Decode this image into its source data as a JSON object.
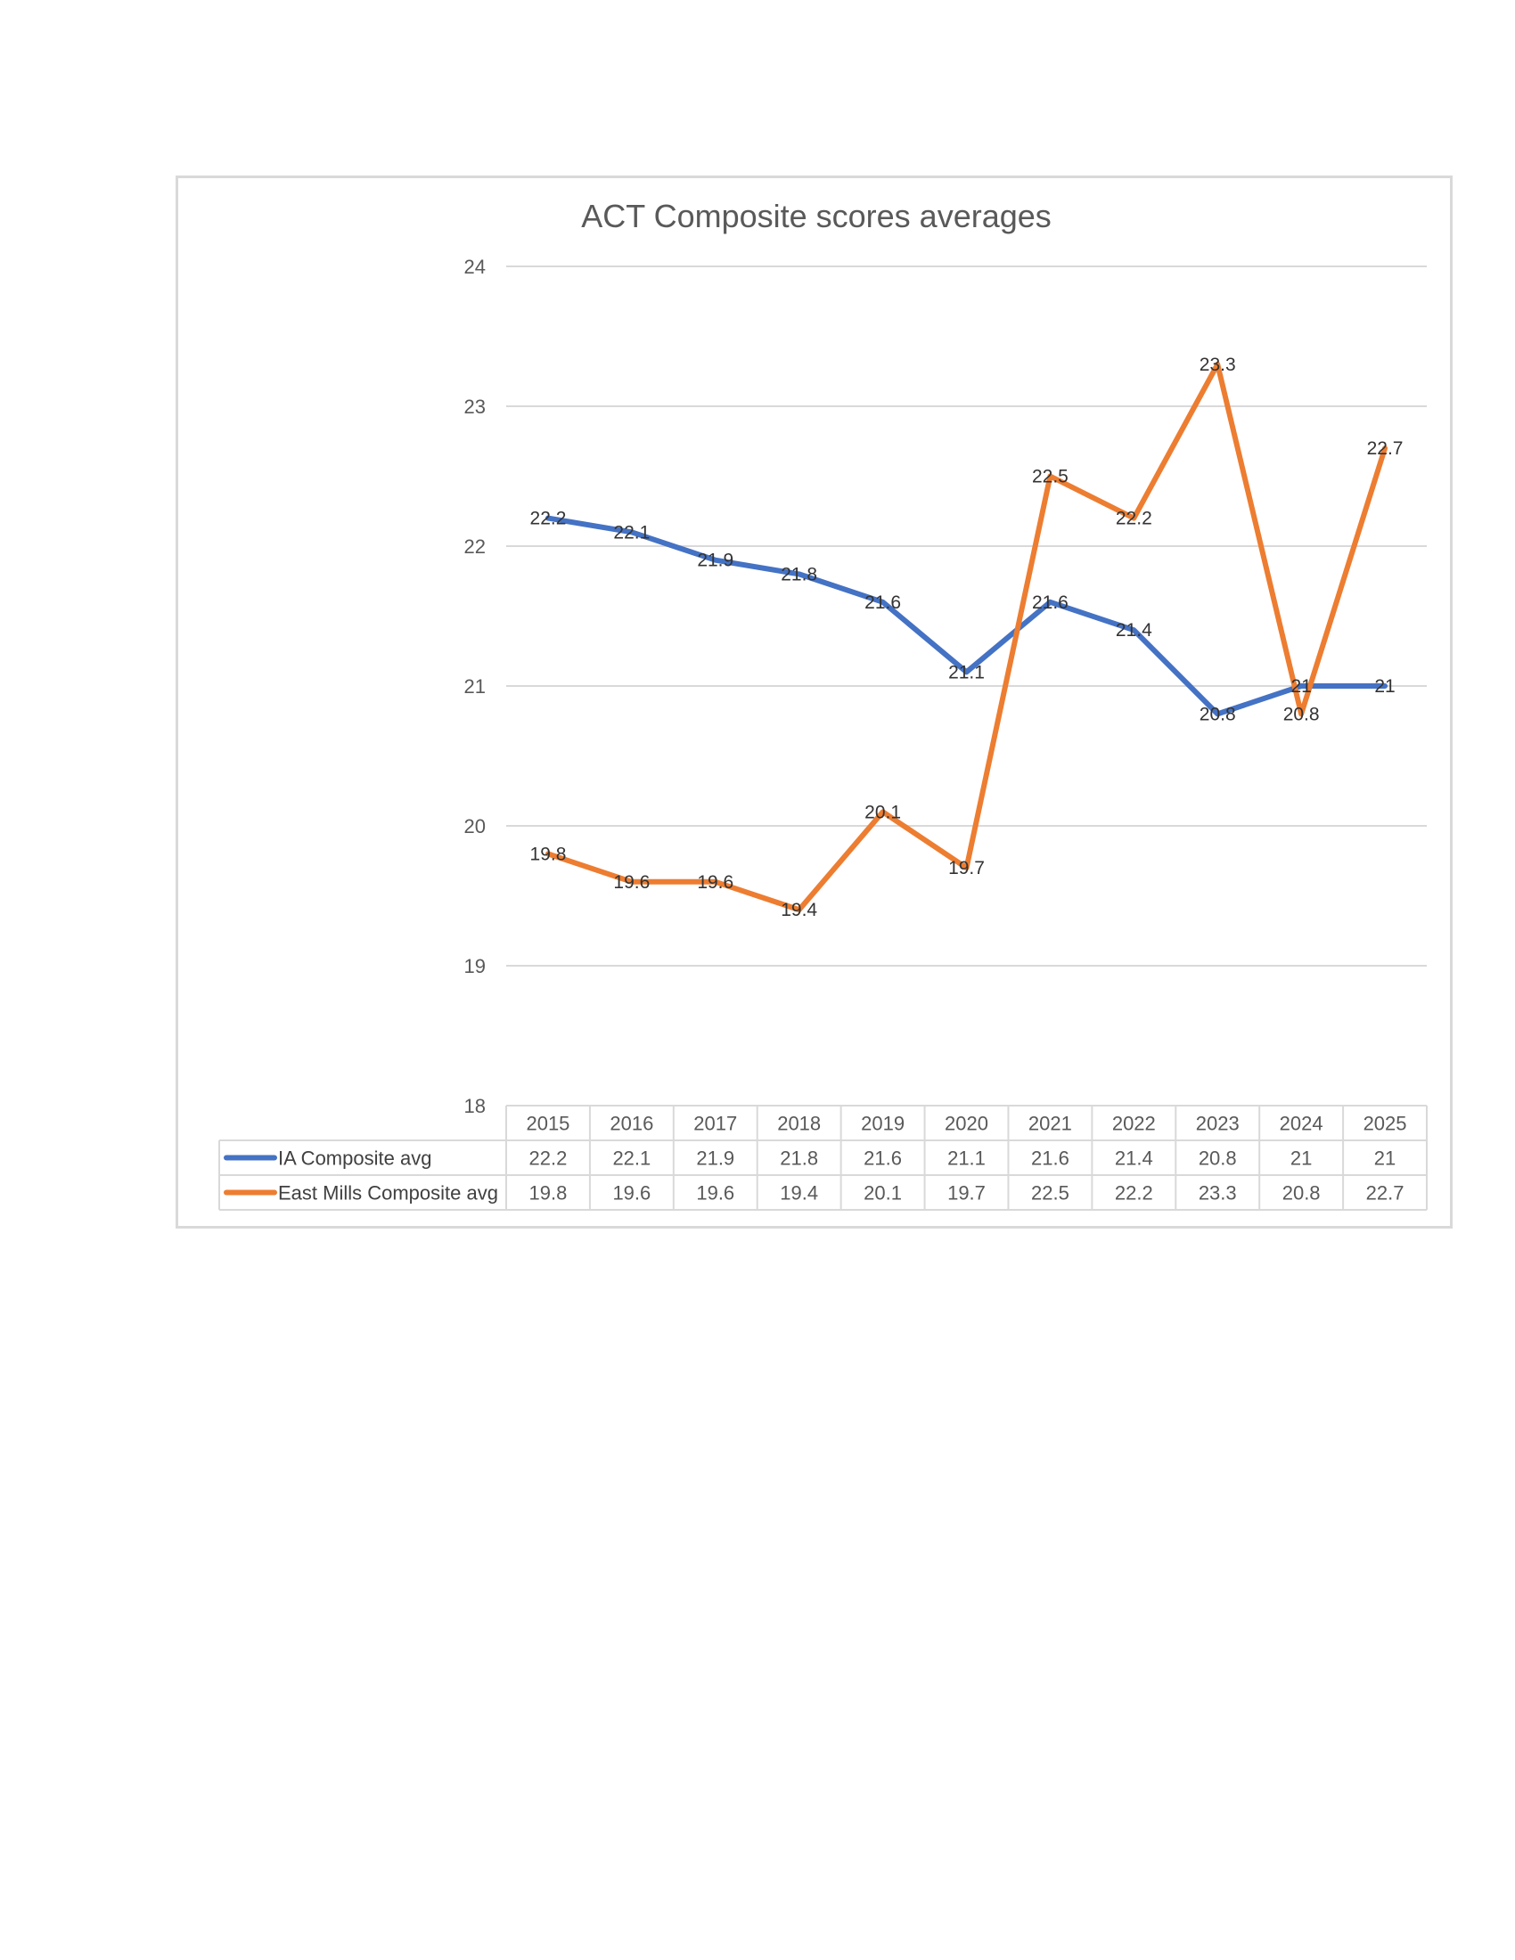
{
  "chart_data": {
    "type": "line",
    "title": "ACT Composite scores averages",
    "xlabel": "",
    "ylabel": "",
    "ylim": [
      18,
      24
    ],
    "yticks": [
      18,
      19,
      20,
      21,
      22,
      23,
      24
    ],
    "grid": true,
    "legend": "data-table",
    "categories": [
      "2015",
      "2016",
      "2017",
      "2018",
      "2019",
      "2020",
      "2021",
      "2022",
      "2023",
      "2024",
      "2025"
    ],
    "series": [
      {
        "name": "IA Composite avg",
        "color": "#4472c4",
        "values": [
          22.2,
          22.1,
          21.9,
          21.8,
          21.6,
          21.1,
          21.6,
          21.4,
          20.8,
          21,
          21
        ]
      },
      {
        "name": "East Mills Composite avg",
        "color": "#ed7d31",
        "values": [
          19.8,
          19.6,
          19.6,
          19.4,
          20.1,
          19.7,
          22.5,
          22.2,
          23.3,
          20.8,
          22.7
        ]
      }
    ]
  }
}
